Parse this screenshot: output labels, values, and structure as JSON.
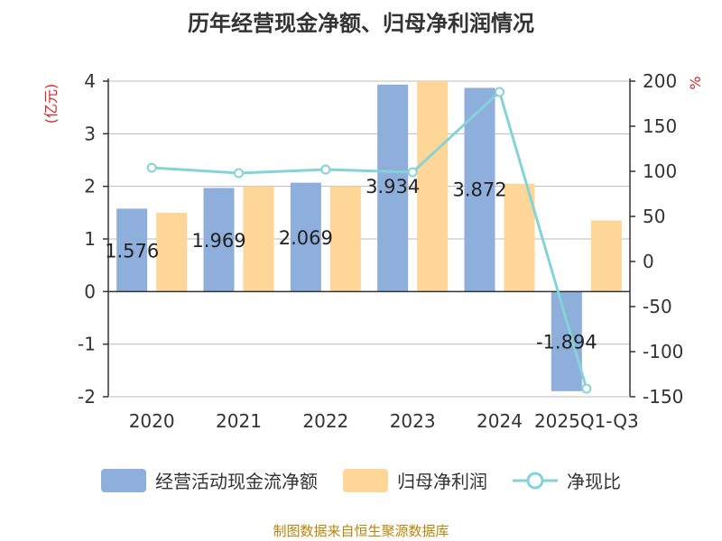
{
  "title": "历年经营现金净额、归母净利润情况",
  "source": "制图数据来自恒生聚源数据库",
  "colors": {
    "cash": "#8eaedb",
    "profit": "#fdd698",
    "ratio": "#85d3d7",
    "ylabel": "#d62728",
    "axis": "#333333",
    "grid": "#bbbbbb"
  },
  "chart_data": {
    "type": "bar",
    "categories": [
      "2020",
      "2021",
      "2022",
      "2023",
      "2024",
      "2025Q1-Q3"
    ],
    "series": [
      {
        "name": "经营活动现金流净额",
        "type": "bar",
        "axis": "left",
        "values": [
          1.576,
          1.969,
          2.069,
          3.934,
          3.872,
          -1.894
        ],
        "labels": [
          "1.576",
          "1.969",
          "2.069",
          "3.934",
          "3.872",
          "-1.894"
        ]
      },
      {
        "name": "归母净利润",
        "type": "bar",
        "axis": "left",
        "values": [
          1.5,
          2.0,
          2.0,
          4.0,
          2.05,
          1.35
        ]
      },
      {
        "name": "净现比",
        "type": "line",
        "axis": "right",
        "values": [
          104,
          98,
          102,
          99,
          188,
          -141
        ]
      }
    ],
    "y_left": {
      "label": "(亿元)",
      "min": -2,
      "max": 4,
      "ticks": [
        -2,
        -1,
        0,
        1,
        2,
        3,
        4
      ]
    },
    "y_right": {
      "label": "%",
      "min": -150,
      "max": 200,
      "ticks": [
        -150,
        -100,
        -50,
        0,
        50,
        100,
        150,
        200
      ]
    },
    "grid": true,
    "legend_position": "bottom"
  }
}
